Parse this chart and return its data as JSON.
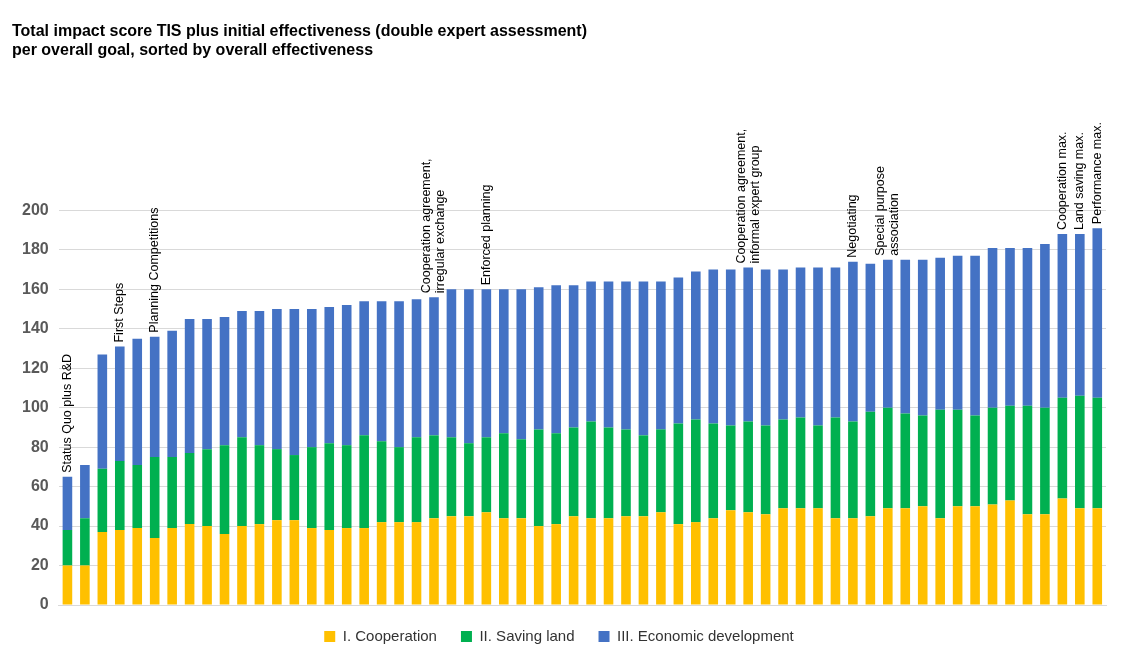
{
  "chart_data": {
    "type": "bar",
    "title": "Total impact score TIS plus initial effectiveness (double expert assessment) per overall goal, sorted by overall effectiveness",
    "categories": [
      "Status Quo plus R&D",
      null,
      null,
      "First Steps",
      null,
      "Planning Competitions",
      null,
      null,
      null,
      null,
      null,
      null,
      null,
      null,
      null,
      null,
      null,
      null,
      null,
      null,
      null,
      "Cooperation agreement, irregular exchange",
      null,
      null,
      "Enforced planning",
      null,
      null,
      null,
      null,
      null,
      null,
      null,
      null,
      null,
      null,
      null,
      null,
      null,
      null,
      "Cooperation agreement, informal expert group",
      null,
      null,
      null,
      null,
      null,
      "Negotiating",
      null,
      "Special purpose association",
      null,
      null,
      null,
      null,
      null,
      null,
      null,
      null,
      null,
      "Cooperation max.",
      "Land saving max.",
      "Performance max."
    ],
    "stacked": true,
    "series": [
      {
        "name": "I. Cooperation",
        "color": "#ffc000",
        "values": [
          20,
          20,
          37,
          38,
          39,
          34,
          39,
          41,
          40,
          36,
          40,
          41,
          43,
          43,
          39,
          38,
          39,
          39,
          42,
          42,
          42,
          44,
          45,
          45,
          47,
          44,
          44,
          40,
          41,
          45,
          44,
          44,
          45,
          45,
          47,
          41,
          42,
          44,
          48,
          47,
          46,
          49,
          49,
          49,
          44,
          44,
          45,
          49,
          49,
          50,
          44,
          50,
          50,
          51,
          53,
          46,
          46,
          54,
          49,
          49
        ]
      },
      {
        "name": "II. Saving land",
        "color": "#00b050",
        "values": [
          18,
          24,
          32,
          35,
          32,
          41,
          36,
          36,
          39,
          45,
          45,
          40,
          36,
          33,
          41,
          44,
          42,
          47,
          41,
          38,
          43,
          42,
          40,
          37,
          38,
          43,
          40,
          49,
          46,
          45,
          49,
          46,
          44,
          41,
          42,
          51,
          52,
          48,
          43,
          46,
          45,
          45,
          46,
          42,
          51,
          49,
          53,
          51,
          48,
          46,
          55,
          49,
          46,
          49,
          48,
          55,
          54,
          51,
          57,
          56
        ]
      },
      {
        "name": "III. Economic development",
        "color": "#4472c4",
        "values": [
          27,
          27,
          58,
          58,
          64,
          61,
          64,
          68,
          66,
          65,
          64,
          68,
          71,
          74,
          70,
          69,
          71,
          68,
          71,
          74,
          70,
          70,
          75,
          78,
          75,
          73,
          76,
          72,
          75,
          72,
          71,
          74,
          75,
          78,
          75,
          74,
          75,
          78,
          79,
          78,
          79,
          76,
          76,
          80,
          76,
          81,
          75,
          75,
          78,
          79,
          77,
          78,
          81,
          81,
          80,
          80,
          83,
          83,
          82,
          86
        ]
      }
    ],
    "ylim": [
      0,
      200
    ],
    "yticks": [
      0,
      20,
      40,
      60,
      80,
      100,
      120,
      140,
      160,
      180,
      200
    ],
    "grid": "y",
    "legend": "bottom",
    "tick_labels": "y"
  }
}
